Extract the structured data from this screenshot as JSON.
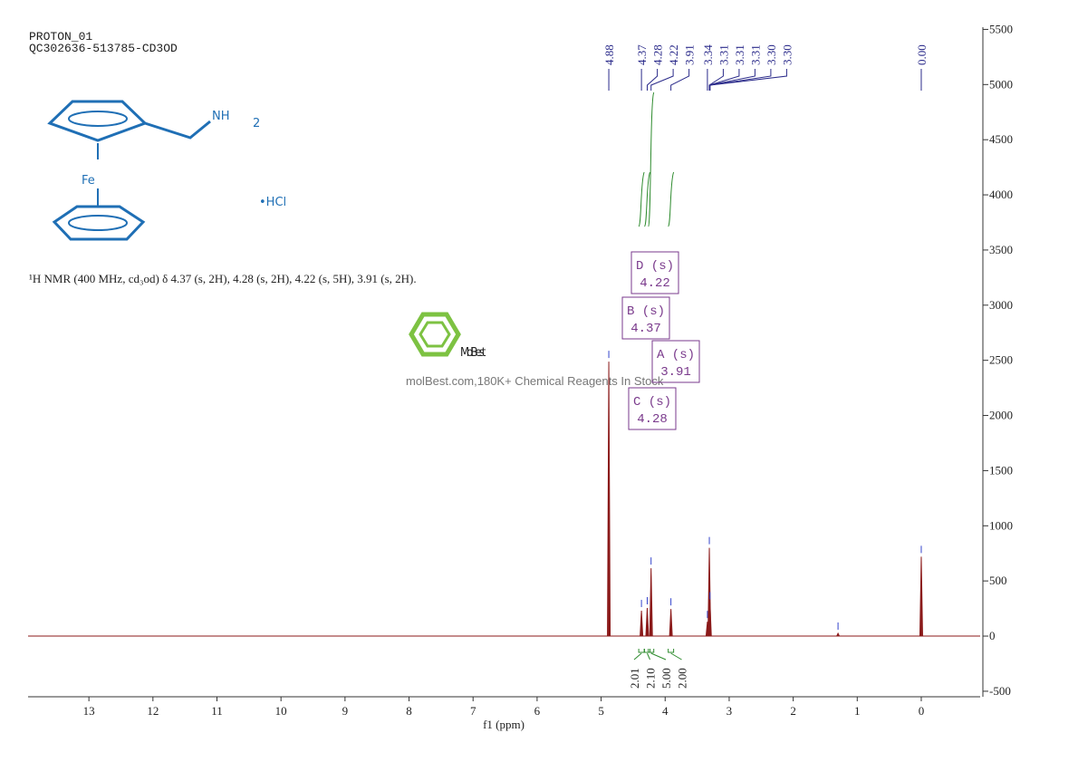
{
  "chart_data": {
    "type": "nmr",
    "title": "PROTON_01",
    "subtitle": "QC302636-513785-CD3OD",
    "description": "¹H NMR (400 MHz, cd₃od) δ 4.37 (s, 2H), 4.28 (s, 2H), 4.22 (s, 5H), 3.91 (s, 2H).",
    "structure_labels": {
      "amine": "NH",
      "amine_sub": "2",
      "metal": "Fe",
      "salt": "•HCl"
    },
    "watermark": {
      "logo": "MolBest",
      "text": "molBest.com,180K+ Chemical Reagents In Stock"
    },
    "x_label": "f1 (ppm)",
    "xlim": [
      13.95,
      -0.92
    ],
    "xticks": [
      13,
      12,
      11,
      10,
      9,
      8,
      7,
      6,
      5,
      4,
      3,
      2,
      1,
      0
    ],
    "ylim": [
      -550,
      5520
    ],
    "yticks": [
      -500,
      0,
      500,
      1000,
      1500,
      2000,
      2500,
      3000,
      3500,
      4000,
      4500,
      5000,
      5500
    ],
    "color": "#8b1a1a",
    "peaks": {
      "x": [
        4.88,
        4.37,
        4.28,
        4.22,
        3.91,
        3.34,
        3.31,
        3.3,
        1.3,
        0.0
      ],
      "values": [
        2488,
        230,
        255,
        615,
        245,
        130,
        800,
        300,
        25,
        720
      ]
    },
    "peak_labels": [
      4.88,
      4.37,
      4.28,
      4.22,
      3.91,
      3.34,
      3.31,
      3.31,
      3.31,
      {
        "value": 3.3,
        "label": "3.30"
      },
      {
        "value": 3.3,
        "label": "3.30"
      },
      {
        "value": 0,
        "label": "0.00"
      }
    ],
    "multiplets": [
      {
        "label": "D (s)",
        "shift": 4.22
      },
      {
        "label": "B (s)",
        "shift": 4.37
      },
      {
        "label": "A (s)",
        "shift": 3.91
      },
      {
        "label": "C (s)",
        "shift": 4.28
      }
    ],
    "integrals": {
      "x": [
        4.37,
        4.28,
        4.22,
        3.91
      ],
      "values": [
        2.01,
        2.1,
        5,
        2
      ],
      "value_labels": [
        "2.01",
        "2.10",
        "5.00",
        "2.00"
      ]
    }
  }
}
